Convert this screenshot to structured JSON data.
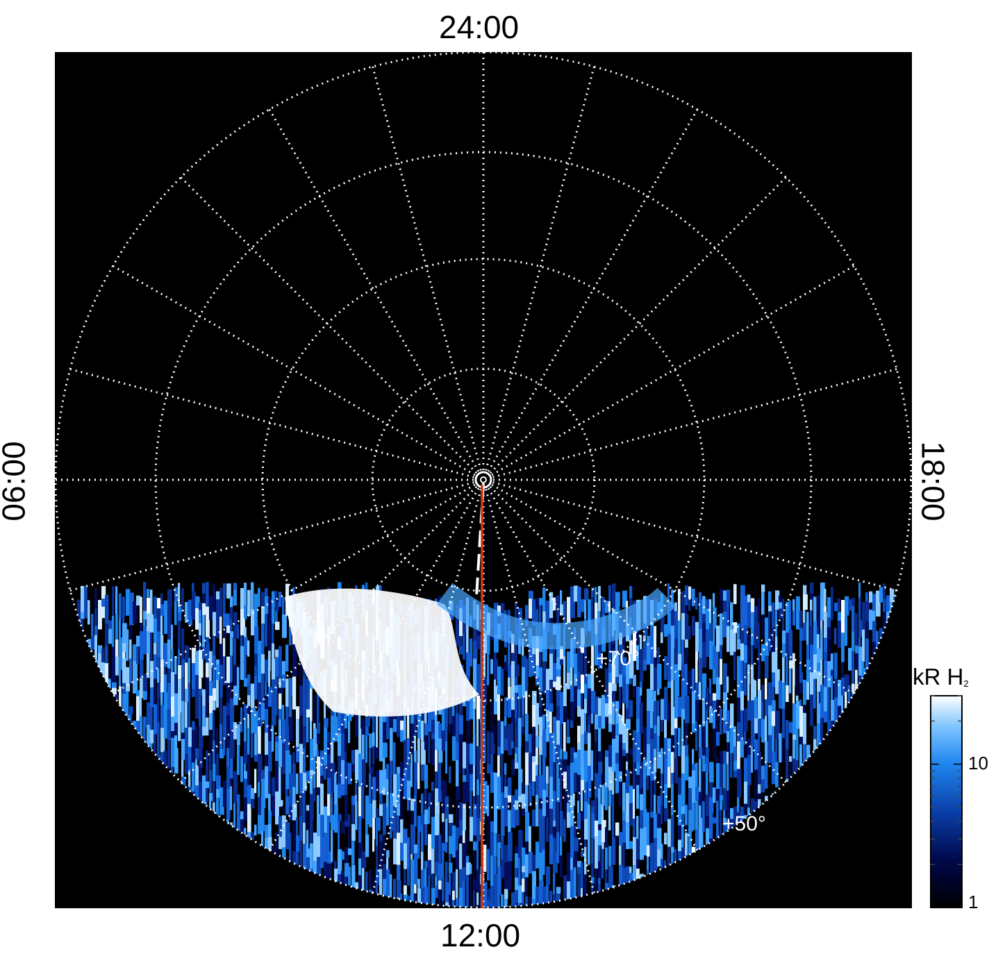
{
  "image": {
    "local_time_labels": {
      "top": "24:00",
      "bottom": "12:00",
      "left": "06:00",
      "right": "18:00"
    },
    "latitude_labels": [
      "+70°",
      "+50°"
    ],
    "colorbar": {
      "unit": "kR",
      "species": "H",
      "species_subscript": "2",
      "ticks": [
        {
          "value": 10,
          "label": "10"
        },
        {
          "value": 1,
          "label": "1"
        }
      ]
    },
    "colors": {
      "background": "#000000",
      "grid": "#ffffff",
      "reference_line": "#d03a12",
      "aurora_low": "#00063a",
      "aurora_mid": "#1f86ee",
      "aurora_high": "#ffffff"
    }
  }
}
